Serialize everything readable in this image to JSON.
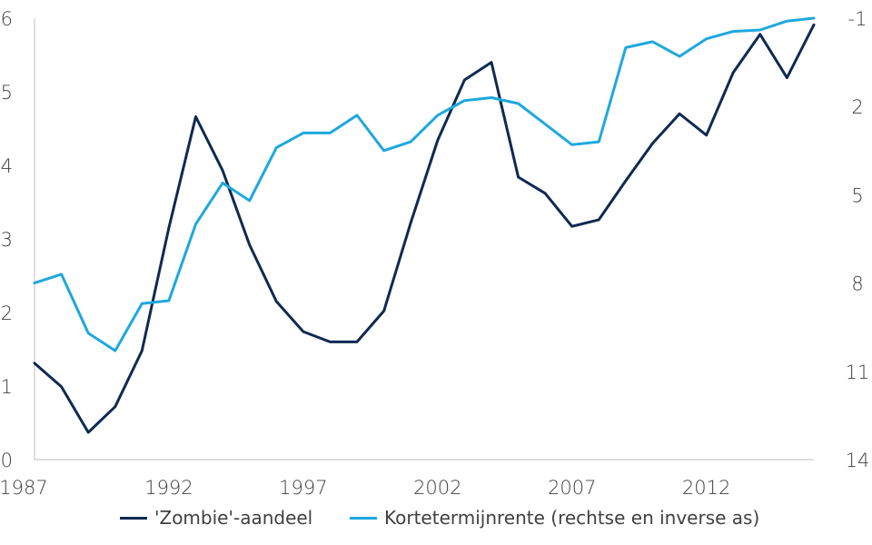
{
  "chart_data": {
    "type": "line",
    "x": [
      1987,
      1988,
      1989,
      1990,
      1991,
      1992,
      1993,
      1994,
      1995,
      1996,
      1997,
      1998,
      1999,
      2000,
      2001,
      2002,
      2003,
      2004,
      2005,
      2006,
      2007,
      2008,
      2009,
      2010,
      2011,
      2012,
      2013,
      2014,
      2015,
      2016
    ],
    "x_ticks": [
      "1987",
      "1992",
      "1997",
      "2002",
      "2007",
      "2012"
    ],
    "y_left_ticks": [
      "0",
      "1",
      "2",
      "3",
      "4",
      "5",
      "6"
    ],
    "y_right_ticks": [
      "-1",
      "2",
      "5",
      "8",
      "11",
      "14"
    ],
    "ylim_left": [
      0,
      6
    ],
    "ylim_right": [
      -1,
      14
    ],
    "right_axis_inverted": true,
    "grid": false,
    "legend_position": "bottom",
    "series": [
      {
        "name": "'Zombie'-aandeel",
        "axis": "left",
        "color": "#0f2a50",
        "values": [
          1.31,
          0.99,
          0.37,
          0.72,
          1.48,
          3.15,
          4.66,
          3.93,
          2.92,
          2.15,
          1.74,
          1.6,
          1.6,
          2.02,
          3.22,
          4.34,
          5.16,
          5.4,
          3.84,
          3.62,
          3.17,
          3.26,
          3.79,
          4.3,
          4.7,
          4.41,
          5.26,
          5.78,
          5.19,
          5.91
        ]
      },
      {
        "name": "Kortetermijnrente (rechtse en inverse as)",
        "axis": "right",
        "color": "#1ea8de",
        "values": [
          8.0,
          7.7,
          9.7,
          10.3,
          8.7,
          8.6,
          6.0,
          4.6,
          5.2,
          3.4,
          2.9,
          2.9,
          2.3,
          3.5,
          3.2,
          2.3,
          1.8,
          1.7,
          1.9,
          2.6,
          3.3,
          3.2,
          0.0,
          -0.2,
          0.3,
          -0.3,
          -0.55,
          -0.6,
          -0.9,
          -1.0
        ]
      }
    ]
  }
}
